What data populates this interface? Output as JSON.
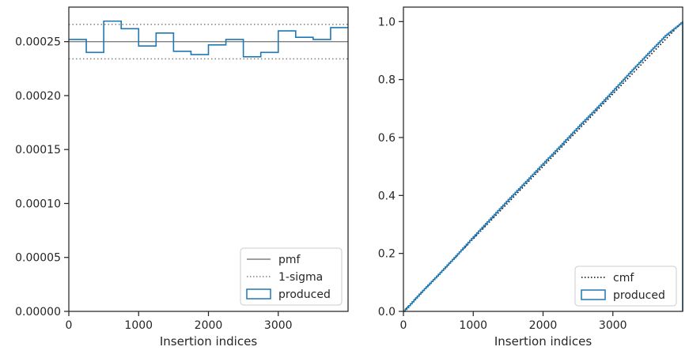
{
  "chart_data": [
    {
      "type": "line",
      "xlabel": "Insertion indices",
      "ylabel": "",
      "xlim": [
        0,
        4000
      ],
      "ylim": [
        0,
        0.000282
      ],
      "xticks": [
        0,
        1000,
        2000,
        3000
      ],
      "xtick_labels": [
        "0",
        "1000",
        "2000",
        "3000"
      ],
      "yticks": [
        0,
        5e-05,
        0.0001,
        0.00015,
        0.0002,
        0.00025
      ],
      "ytick_labels": [
        "0.00000",
        "0.00005",
        "0.00010",
        "0.00015",
        "0.00020",
        "0.00025"
      ],
      "grid": false,
      "legend_position": "lower-right",
      "series": [
        {
          "name": "pmf",
          "style": "solid",
          "color": "#808080",
          "values": [
            0.00025
          ]
        },
        {
          "name": "1-sigma",
          "style": "dotted",
          "color": "#808080",
          "values": [
            0.000266,
            0.000234
          ]
        },
        {
          "name": "produced",
          "style": "step-histogram",
          "color": "#1f77b4",
          "bin_edges": [
            0,
            250,
            500,
            750,
            1000,
            1250,
            1500,
            1750,
            2000,
            2250,
            2500,
            2750,
            3000,
            3250,
            3500,
            3750,
            4000
          ],
          "values": [
            0.000252,
            0.00024,
            0.000269,
            0.000262,
            0.000246,
            0.000258,
            0.000241,
            0.000238,
            0.000247,
            0.000252,
            0.000236,
            0.00024,
            0.00026,
            0.000254,
            0.000252,
            0.000263
          ]
        }
      ]
    },
    {
      "type": "line",
      "xlabel": "Insertion indices",
      "ylabel": "",
      "xlim": [
        0,
        4000
      ],
      "ylim": [
        0,
        1.05
      ],
      "xticks": [
        0,
        1000,
        2000,
        3000
      ],
      "xtick_labels": [
        "0",
        "1000",
        "2000",
        "3000"
      ],
      "yticks": [
        0,
        0.2,
        0.4,
        0.6,
        0.8,
        1.0
      ],
      "ytick_labels": [
        "0.0",
        "0.2",
        "0.4",
        "0.6",
        "0.8",
        "1.0"
      ],
      "grid": false,
      "legend_position": "lower-right",
      "series": [
        {
          "name": "cmf",
          "style": "dotted",
          "color": "#000000",
          "x": [
            0,
            4000
          ],
          "values": [
            0,
            1
          ]
        },
        {
          "name": "produced",
          "style": "step-cumulative",
          "color": "#1f77b4",
          "x": [
            0,
            250,
            500,
            750,
            1000,
            1250,
            1500,
            1750,
            2000,
            2250,
            2500,
            2750,
            3000,
            3250,
            3500,
            3750,
            4000
          ],
          "values": [
            0,
            0.066,
            0.128,
            0.192,
            0.258,
            0.322,
            0.386,
            0.448,
            0.511,
            0.573,
            0.637,
            0.698,
            0.762,
            0.827,
            0.89,
            0.952,
            1.0
          ]
        }
      ]
    }
  ]
}
